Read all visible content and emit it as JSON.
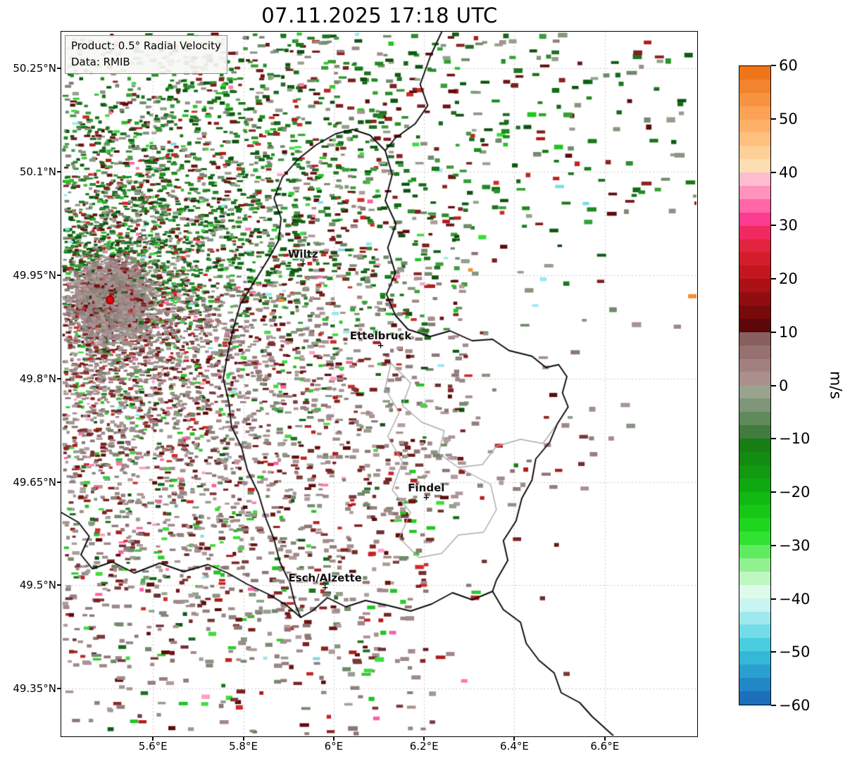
{
  "title": "07.11.2025 17:18 UTC",
  "info_box": {
    "line1": "Product: 0.5° Radial Velocity",
    "line2": "Data: RMIB"
  },
  "axes": {
    "extent": {
      "lon_min": 5.397,
      "lon_max": 6.803,
      "lat_min": 49.282,
      "lat_max": 50.303
    },
    "lat_ticks": [
      {
        "label": "50.25°N",
        "value": 50.25
      },
      {
        "label": "50.1°N",
        "value": 50.1
      },
      {
        "label": "49.95°N",
        "value": 49.95
      },
      {
        "label": "49.8°N",
        "value": 49.8
      },
      {
        "label": "49.65°N",
        "value": 49.65
      },
      {
        "label": "49.5°N",
        "value": 49.5
      },
      {
        "label": "49.35°N",
        "value": 49.35
      }
    ],
    "lon_ticks": [
      {
        "label": "5.6°E",
        "value": 5.6
      },
      {
        "label": "5.8°E",
        "value": 5.8
      },
      {
        "label": "6°E",
        "value": 6.0
      },
      {
        "label": "6.2°E",
        "value": 6.2
      },
      {
        "label": "6.4°E",
        "value": 6.4
      },
      {
        "label": "6.6°E",
        "value": 6.6
      }
    ]
  },
  "radar": {
    "lon": 5.505,
    "lat": 49.914,
    "marker_color": "#e8000b"
  },
  "map": {
    "cities": [
      {
        "name": "Wiltz",
        "lon": 5.932,
        "lat": 49.966
      },
      {
        "name": "Ettelbruck",
        "lon": 6.104,
        "lat": 49.848
      },
      {
        "name": "Findel",
        "lon": 6.205,
        "lat": 49.627
      },
      {
        "name": "Esch/Alzette",
        "lon": 5.981,
        "lat": 49.496
      }
    ],
    "borders": {
      "national": [
        [
          [
            0.599,
            0.0
          ],
          [
            0.581,
            0.035
          ],
          [
            0.565,
            0.075
          ],
          [
            0.577,
            0.105
          ],
          [
            0.557,
            0.131
          ],
          [
            0.526,
            0.151
          ],
          [
            0.51,
            0.169
          ]
        ],
        [
          [
            0.51,
            0.169
          ],
          [
            0.521,
            0.203
          ],
          [
            0.51,
            0.24
          ],
          [
            0.527,
            0.273
          ],
          [
            0.514,
            0.307
          ],
          [
            0.526,
            0.343
          ],
          [
            0.512,
            0.373
          ],
          [
            0.526,
            0.403
          ],
          [
            0.546,
            0.423
          ],
          [
            0.581,
            0.433
          ],
          [
            0.612,
            0.425
          ],
          [
            0.647,
            0.439
          ],
          [
            0.679,
            0.437
          ],
          [
            0.705,
            0.453
          ],
          [
            0.741,
            0.461
          ],
          [
            0.763,
            0.477
          ],
          [
            0.783,
            0.473
          ],
          [
            0.796,
            0.49
          ],
          [
            0.789,
            0.513
          ],
          [
            0.798,
            0.533
          ],
          [
            0.781,
            0.557
          ],
          [
            0.769,
            0.583
          ],
          [
            0.747,
            0.607
          ],
          [
            0.741,
            0.637
          ],
          [
            0.725,
            0.663
          ],
          [
            0.716,
            0.695
          ],
          [
            0.696,
            0.723
          ],
          [
            0.703,
            0.751
          ],
          [
            0.685,
            0.779
          ],
          [
            0.679,
            0.795
          ],
          [
            0.647,
            0.807
          ],
          [
            0.616,
            0.797
          ],
          [
            0.583,
            0.813
          ],
          [
            0.55,
            0.823
          ],
          [
            0.514,
            0.815
          ],
          [
            0.479,
            0.808
          ],
          [
            0.448,
            0.817
          ],
          [
            0.419,
            0.804
          ],
          [
            0.395,
            0.823
          ],
          [
            0.377,
            0.832
          ],
          [
            0.368,
            0.813
          ],
          [
            0.36,
            0.783
          ],
          [
            0.344,
            0.753
          ],
          [
            0.335,
            0.721
          ],
          [
            0.322,
            0.691
          ],
          [
            0.31,
            0.655
          ],
          [
            0.293,
            0.623
          ],
          [
            0.284,
            0.591
          ],
          [
            0.268,
            0.561
          ],
          [
            0.264,
            0.527
          ],
          [
            0.255,
            0.493
          ],
          [
            0.262,
            0.457
          ],
          [
            0.271,
            0.421
          ],
          [
            0.282,
            0.387
          ],
          [
            0.304,
            0.355
          ],
          [
            0.326,
            0.323
          ],
          [
            0.342,
            0.297
          ],
          [
            0.346,
            0.265
          ],
          [
            0.335,
            0.237
          ],
          [
            0.348,
            0.207
          ],
          [
            0.373,
            0.181
          ],
          [
            0.401,
            0.161
          ],
          [
            0.432,
            0.145
          ],
          [
            0.459,
            0.139
          ],
          [
            0.486,
            0.147
          ],
          [
            0.51,
            0.169
          ]
        ],
        [
          [
            0.0,
            0.683
          ],
          [
            0.027,
            0.697
          ],
          [
            0.044,
            0.717
          ],
          [
            0.031,
            0.743
          ],
          [
            0.049,
            0.763
          ],
          [
            0.08,
            0.753
          ],
          [
            0.115,
            0.769
          ],
          [
            0.155,
            0.755
          ],
          [
            0.193,
            0.767
          ],
          [
            0.231,
            0.757
          ],
          [
            0.262,
            0.769
          ],
          [
            0.293,
            0.785
          ],
          [
            0.326,
            0.799
          ],
          [
            0.355,
            0.815
          ],
          [
            0.377,
            0.832
          ]
        ],
        [
          [
            0.679,
            0.795
          ],
          [
            0.696,
            0.821
          ],
          [
            0.723,
            0.839
          ],
          [
            0.732,
            0.869
          ],
          [
            0.752,
            0.893
          ],
          [
            0.776,
            0.911
          ],
          [
            0.787,
            0.939
          ],
          [
            0.816,
            0.953
          ],
          [
            0.836,
            0.973
          ],
          [
            0.858,
            0.991
          ],
          [
            0.869,
            1.0
          ]
        ]
      ],
      "regional": [
        [
          [
            0.519,
            0.471
          ],
          [
            0.55,
            0.499
          ],
          [
            0.537,
            0.531
          ],
          [
            0.568,
            0.555
          ],
          [
            0.603,
            0.567
          ],
          [
            0.594,
            0.599
          ],
          [
            0.625,
            0.619
          ],
          [
            0.663,
            0.615
          ],
          [
            0.685,
            0.589
          ],
          [
            0.723,
            0.579
          ],
          [
            0.758,
            0.585
          ],
          [
            0.781,
            0.557
          ]
        ],
        [
          [
            0.519,
            0.471
          ],
          [
            0.51,
            0.507
          ],
          [
            0.532,
            0.541
          ],
          [
            0.514,
            0.575
          ],
          [
            0.537,
            0.611
          ],
          [
            0.521,
            0.651
          ],
          [
            0.55,
            0.683
          ],
          [
            0.532,
            0.719
          ],
          [
            0.563,
            0.747
          ],
          [
            0.599,
            0.741
          ],
          [
            0.625,
            0.715
          ],
          [
            0.665,
            0.711
          ],
          [
            0.685,
            0.679
          ],
          [
            0.676,
            0.643
          ],
          [
            0.625,
            0.619
          ]
        ]
      ]
    }
  },
  "colorbar": {
    "unit": "m/s",
    "vmin": -60,
    "vmax": 60,
    "segment_step": 2.5,
    "ticks": [
      {
        "label": "60",
        "value": 60
      },
      {
        "label": "50",
        "value": 50
      },
      {
        "label": "40",
        "value": 40
      },
      {
        "label": "30",
        "value": 30
      },
      {
        "label": "20",
        "value": 20
      },
      {
        "label": "10",
        "value": 10
      },
      {
        "label": "0",
        "value": 0
      },
      {
        "label": "−10",
        "value": -10
      },
      {
        "label": "−20",
        "value": -20
      },
      {
        "label": "−30",
        "value": -30
      },
      {
        "label": "−40",
        "value": -40
      },
      {
        "label": "−50",
        "value": -50
      },
      {
        "label": "−60",
        "value": -60
      }
    ],
    "colors_top_to_bottom": [
      "#ef7518",
      "#f3832c",
      "#f79340",
      "#fba254",
      "#fdb168",
      "#fec07e",
      "#fecf96",
      "#fdddb2",
      "#ffbcd0",
      "#ff93bc",
      "#ff66a6",
      "#fb3b92",
      "#f02a60",
      "#e32340",
      "#d41d2c",
      "#c3171f",
      "#ab1115",
      "#920d10",
      "#780a0b",
      "#5e0708",
      "#8a5f5f",
      "#977070",
      "#a38080",
      "#ab8f8f",
      "#99a38e",
      "#7f9678",
      "#60895c",
      "#417b3e",
      "#187e14",
      "#128c10",
      "#119a10",
      "#10a810",
      "#12b812",
      "#16c716",
      "#1fd61f",
      "#32e232",
      "#5feb5f",
      "#8ff28f",
      "#bef7c0",
      "#defae8",
      "#c9f4f2",
      "#9fe9ee",
      "#74dce8",
      "#4bcde0",
      "#33b8d8",
      "#2aa0d0",
      "#2287c6",
      "#1c6fba"
    ]
  },
  "chart_data": {
    "type": "heatmap",
    "subtype": "doppler-radar-radial-velocity-ppi",
    "title": "07.11.2025 17:18 UTC",
    "product": "0.5° Radial Velocity",
    "source": "RMIB",
    "unit": "m/s",
    "value_min": -60,
    "value_max": 60,
    "colorbar_ticks": [
      60,
      50,
      40,
      30,
      20,
      10,
      0,
      -10,
      -20,
      -30,
      -40,
      -50,
      -60
    ],
    "x_axis": {
      "label_suffix": "°E",
      "ticks": [
        5.6,
        5.8,
        6.0,
        6.2,
        6.4,
        6.6
      ],
      "range": [
        5.397,
        6.803
      ]
    },
    "y_axis": {
      "label_suffix": "°N",
      "ticks": [
        50.25,
        50.1,
        49.95,
        49.8,
        49.65,
        49.5,
        49.35
      ],
      "range": [
        49.282,
        50.303
      ]
    },
    "radar_site": {
      "lon": 5.505,
      "lat": 49.914
    },
    "labeled_places": [
      "Wiltz",
      "Ettelbruck",
      "Findel",
      "Esch/Alzette"
    ],
    "field_pattern": {
      "north_and_northeast_of_radar": "predominantly negative radial velocities, about -5 to -25 m/s (green shades)",
      "south_and_southwest_of_radar": "near-zero to weakly positive radial velocities, about 0 to +10 m/s (grey-mauve shades)",
      "speckle_noise": "isolated aliased bins in red, dark red, pink and bright green scattered across the field",
      "coverage": "dense echo coverage near the radar in the west, thinning eastward; mostly clear beyond about 6.3°E and in the far southeast"
    }
  }
}
